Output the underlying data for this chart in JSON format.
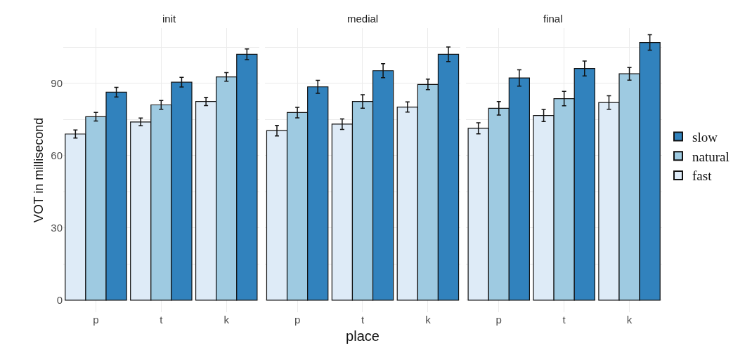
{
  "chart_data": [
    {
      "type": "bar",
      "title": "init",
      "ylabel": "VOT in millisecond",
      "categories": [
        "p",
        "t",
        "k"
      ],
      "ylim": [
        -5,
        113
      ],
      "yticks": [
        0,
        {
          "value": 15,
          "label": null
        },
        30,
        {
          "value": 45,
          "label": null
        },
        60,
        {
          "value": 75,
          "label": null
        },
        90,
        {
          "value": 105,
          "label": null
        }
      ],
      "grid": true,
      "legend": "right",
      "series": [
        {
          "name": "fast",
          "color": "#deebf7",
          "values": [
            69.0,
            74.0,
            82.5
          ],
          "errors": [
            1.7,
            1.6,
            1.7
          ]
        },
        {
          "name": "natural",
          "color": "#9ecae1",
          "values": [
            76.2,
            81.1,
            92.7
          ],
          "errors": [
            1.8,
            1.8,
            1.8
          ]
        },
        {
          "name": "slow",
          "color": "#3182bd",
          "values": [
            86.4,
            90.5,
            102.1
          ],
          "errors": [
            2.0,
            2.0,
            2.2
          ]
        }
      ]
    },
    {
      "type": "bar",
      "title": "medial",
      "xlabel": "place",
      "categories": [
        "p",
        "t",
        "k"
      ],
      "ylim": [
        -5,
        113
      ],
      "yticks": [
        0,
        {
          "value": 15,
          "label": null
        },
        30,
        {
          "value": 45,
          "label": null
        },
        60,
        {
          "value": 75,
          "label": null
        },
        90,
        {
          "value": 105,
          "label": null
        }
      ],
      "grid": true,
      "tick_labels": "x",
      "legend": "right",
      "series": [
        {
          "name": "fast",
          "color": "#deebf7",
          "values": [
            70.4,
            73.1,
            80.2
          ],
          "errors": [
            2.2,
            2.2,
            2.1
          ]
        },
        {
          "name": "natural",
          "color": "#9ecae1",
          "values": [
            77.9,
            82.5,
            89.6
          ],
          "errors": [
            2.2,
            2.8,
            2.2
          ]
        },
        {
          "name": "slow",
          "color": "#3182bd",
          "values": [
            88.6,
            95.3,
            102.1
          ],
          "errors": [
            2.7,
            2.9,
            3.0
          ]
        }
      ]
    },
    {
      "type": "bar",
      "title": "final",
      "categories": [
        "p",
        "t",
        "k"
      ],
      "ylim": [
        -5,
        113
      ],
      "yticks": [
        0,
        {
          "value": 15,
          "label": null
        },
        30,
        {
          "value": 45,
          "label": null
        },
        60,
        {
          "value": 75,
          "label": null
        },
        90,
        {
          "value": 105,
          "label": null
        }
      ],
      "grid": true,
      "tick_labels": "x",
      "legend": "right",
      "series": [
        {
          "name": "fast",
          "color": "#deebf7",
          "values": [
            71.4,
            76.7,
            82.1
          ],
          "errors": [
            2.3,
            2.5,
            2.8
          ]
        },
        {
          "name": "natural",
          "color": "#9ecae1",
          "values": [
            79.7,
            83.7,
            94.0
          ],
          "errors": [
            2.8,
            3.0,
            2.6
          ]
        },
        {
          "name": "slow",
          "color": "#3182bd",
          "values": [
            92.3,
            96.2,
            107.0
          ],
          "errors": [
            3.4,
            3.1,
            3.2
          ]
        }
      ]
    }
  ]
}
